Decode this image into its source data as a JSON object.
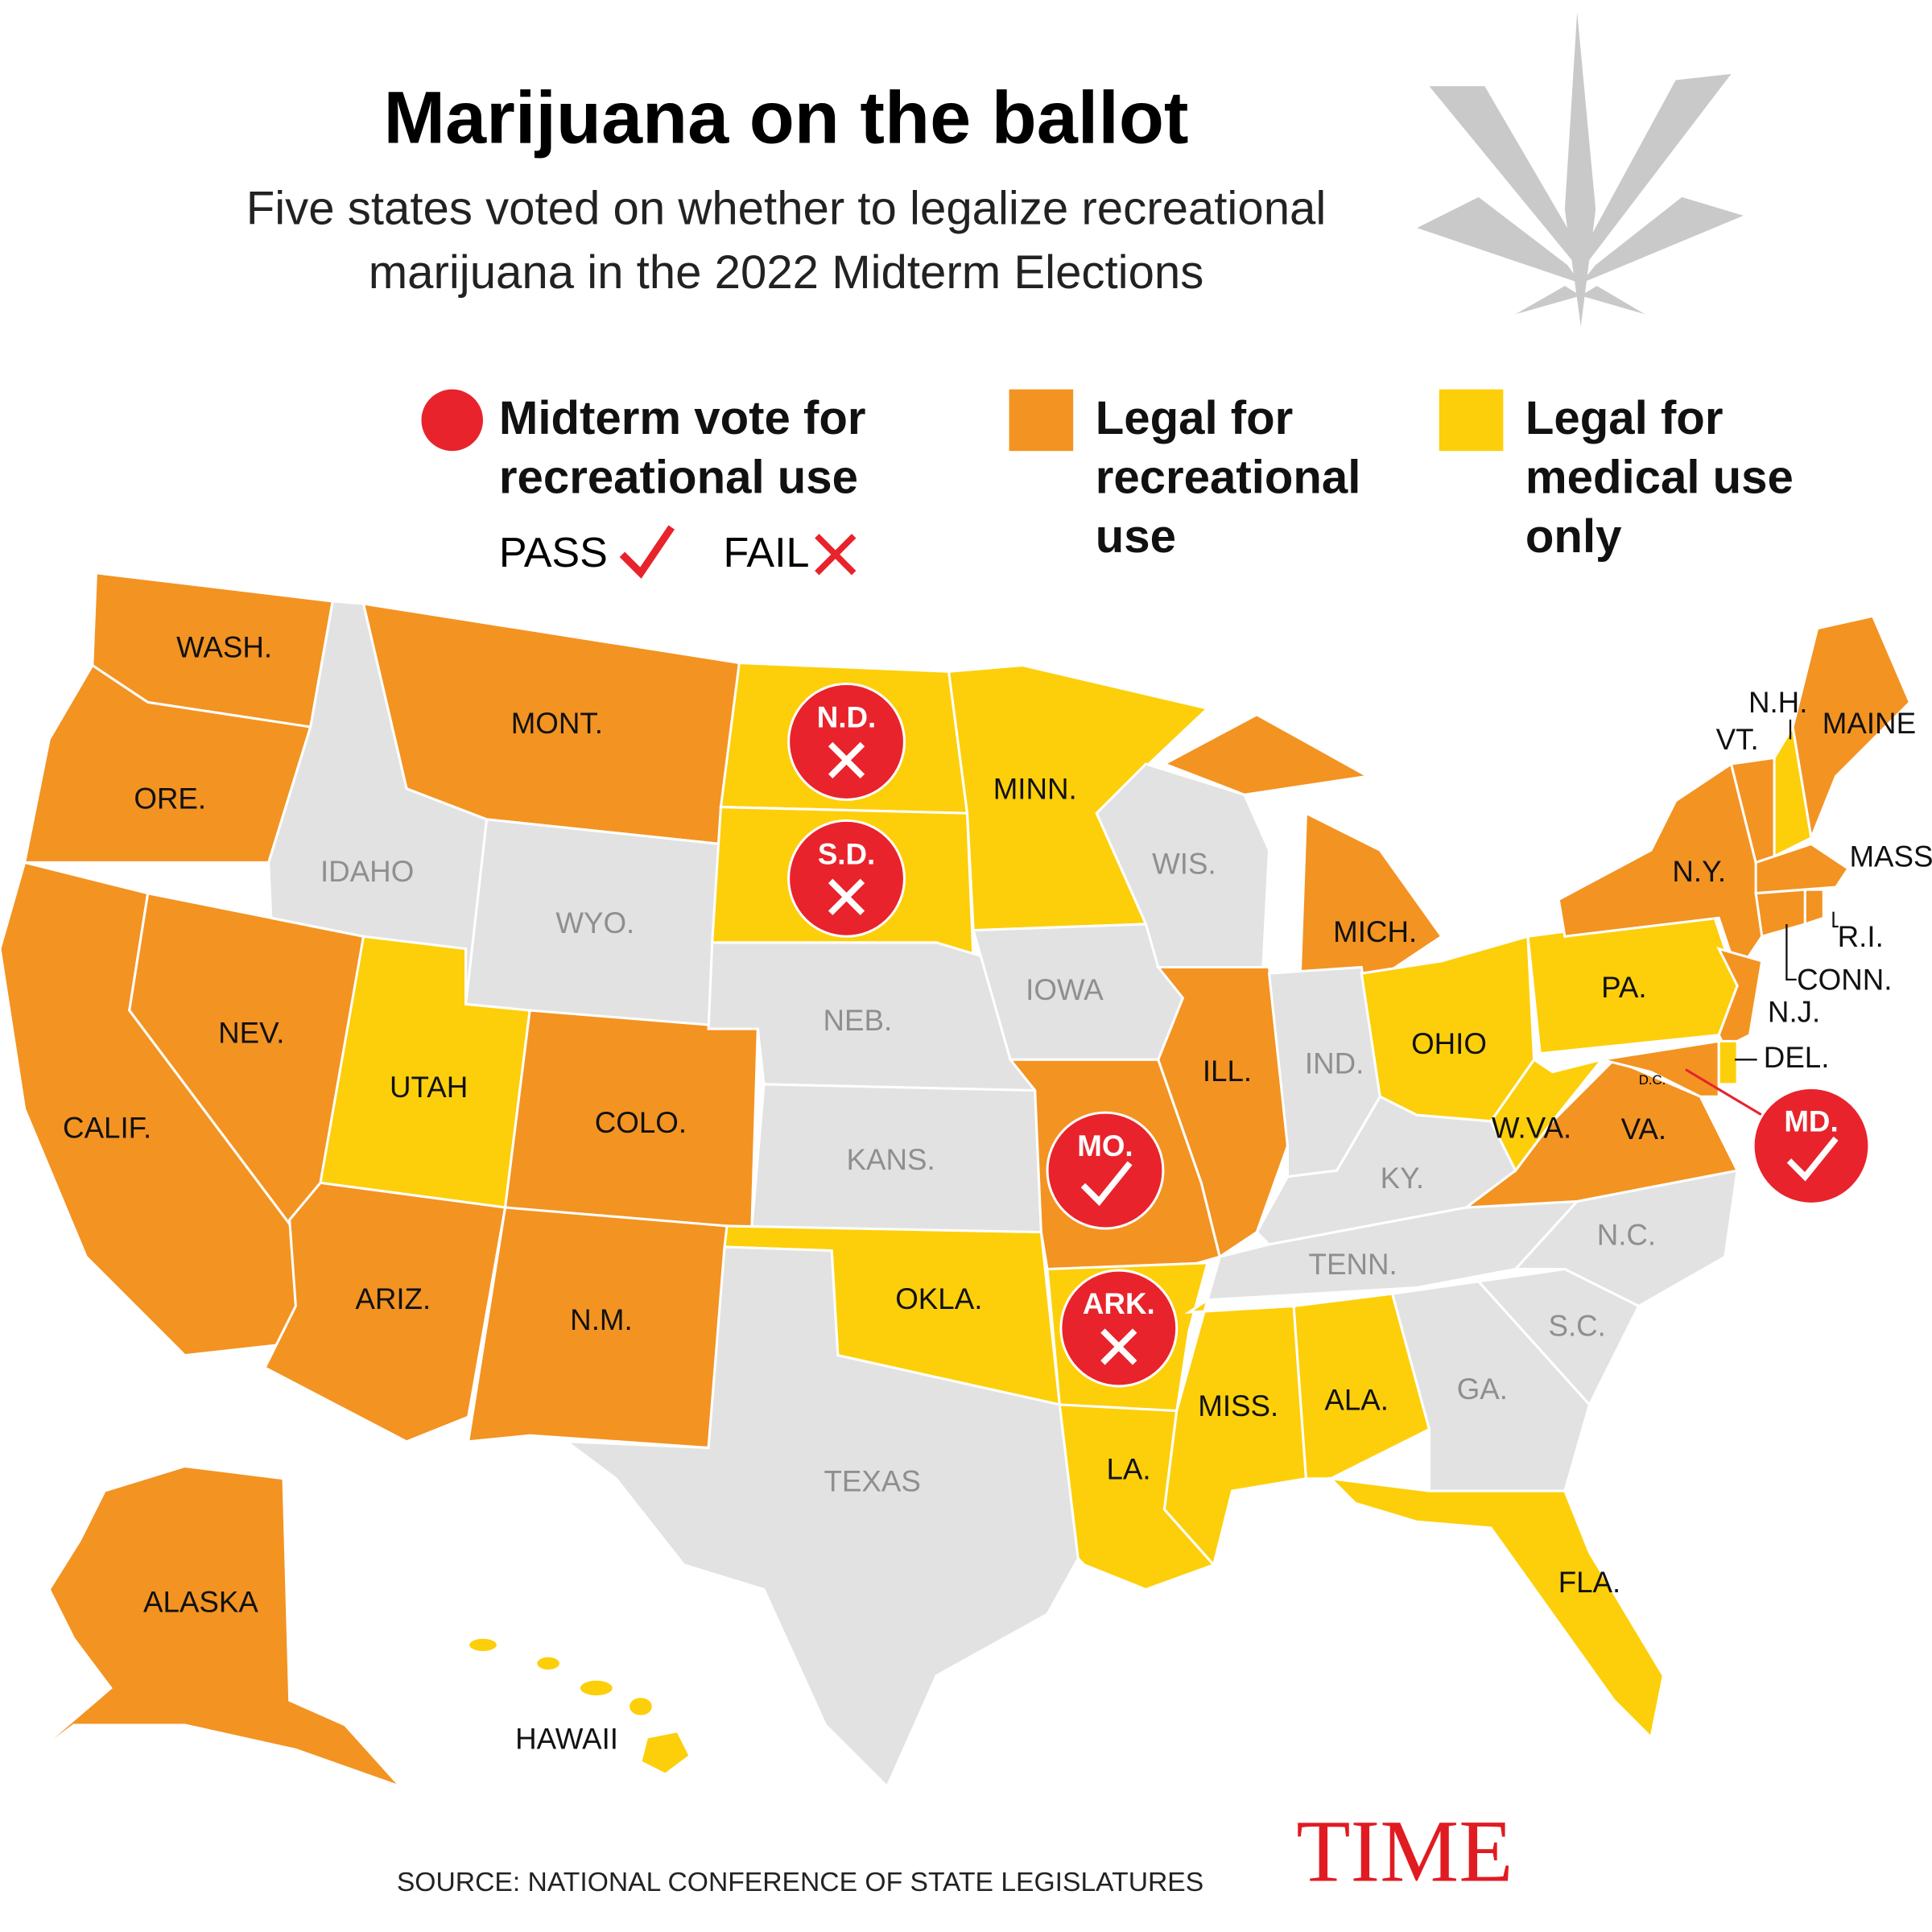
{
  "header": {
    "title": "Marijuana on the ballot",
    "subtitle_lines": [
      "Five states voted on whether to legalize recreational",
      "marijuana in the 2022 Midterm Elections"
    ]
  },
  "legend": {
    "vote_lines": [
      "Midterm vote for",
      "recreational use"
    ],
    "pass": "PASS",
    "fail": "FAIL",
    "recreational_lines": [
      "Legal for",
      "recreational",
      "use"
    ],
    "medical_lines": [
      "Legal for",
      "medical use",
      "only"
    ]
  },
  "colors": {
    "recreational": "#f39322",
    "medical": "#fccf0a",
    "none": "#e2e2e2",
    "vote": "#e8232c"
  },
  "states": [
    {
      "label": "WASH.",
      "status": "recreational"
    },
    {
      "label": "ORE.",
      "status": "recreational"
    },
    {
      "label": "CALIF.",
      "status": "recreational"
    },
    {
      "label": "NEV.",
      "status": "recreational"
    },
    {
      "label": "IDAHO",
      "status": "none"
    },
    {
      "label": "MONT.",
      "status": "recreational"
    },
    {
      "label": "WYO.",
      "status": "none"
    },
    {
      "label": "UTAH",
      "status": "medical"
    },
    {
      "label": "COLO.",
      "status": "recreational"
    },
    {
      "label": "ARIZ.",
      "status": "recreational"
    },
    {
      "label": "N.M.",
      "status": "recreational"
    },
    {
      "label": "N.D.",
      "status": "medical"
    },
    {
      "label": "S.D.",
      "status": "medical"
    },
    {
      "label": "NEB.",
      "status": "none"
    },
    {
      "label": "KANS.",
      "status": "none"
    },
    {
      "label": "OKLA.",
      "status": "medical"
    },
    {
      "label": "TEXAS",
      "status": "none"
    },
    {
      "label": "MINN.",
      "status": "medical"
    },
    {
      "label": "IOWA",
      "status": "none"
    },
    {
      "label": "MO.",
      "status": "recreational"
    },
    {
      "label": "ARK.",
      "status": "medical"
    },
    {
      "label": "LA.",
      "status": "medical"
    },
    {
      "label": "WIS.",
      "status": "none"
    },
    {
      "label": "MICH.",
      "status": "recreational"
    },
    {
      "label": "ILL.",
      "status": "recreational"
    },
    {
      "label": "IND.",
      "status": "none"
    },
    {
      "label": "OHIO",
      "status": "medical"
    },
    {
      "label": "KY.",
      "status": "none"
    },
    {
      "label": "TENN.",
      "status": "none"
    },
    {
      "label": "MISS.",
      "status": "medical"
    },
    {
      "label": "ALA.",
      "status": "medical"
    },
    {
      "label": "GA.",
      "status": "none"
    },
    {
      "label": "FLA.",
      "status": "medical"
    },
    {
      "label": "S.C.",
      "status": "none"
    },
    {
      "label": "N.C.",
      "status": "none"
    },
    {
      "label": "VA.",
      "status": "recreational"
    },
    {
      "label": "W.VA.",
      "status": "medical"
    },
    {
      "label": "PA.",
      "status": "medical"
    },
    {
      "label": "N.Y.",
      "status": "recreational"
    },
    {
      "label": "N.J.",
      "status": "recreational"
    },
    {
      "label": "MD.",
      "status": "recreational"
    },
    {
      "label": "DEL.",
      "status": "medical"
    },
    {
      "label": "VT.",
      "status": "recreational"
    },
    {
      "label": "N.H.",
      "status": "medical"
    },
    {
      "label": "MAINE",
      "status": "recreational"
    },
    {
      "label": "MASS",
      "status": "recreational"
    },
    {
      "label": "CONN.",
      "status": "recreational"
    },
    {
      "label": "R.I.",
      "status": "recreational"
    },
    {
      "label": "ALASKA",
      "status": "recreational"
    },
    {
      "label": "HAWAII",
      "status": "medical"
    }
  ],
  "dc_label": "D.C.",
  "votes": [
    {
      "label": "N.D.",
      "result": "fail"
    },
    {
      "label": "S.D.",
      "result": "fail"
    },
    {
      "label": "MO.",
      "result": "pass"
    },
    {
      "label": "ARK.",
      "result": "fail"
    },
    {
      "label": "MD.",
      "result": "pass"
    }
  ],
  "footer": {
    "source": "SOURCE: NATIONAL CONFERENCE OF STATE LEGISLATURES",
    "logo": "TIME"
  }
}
